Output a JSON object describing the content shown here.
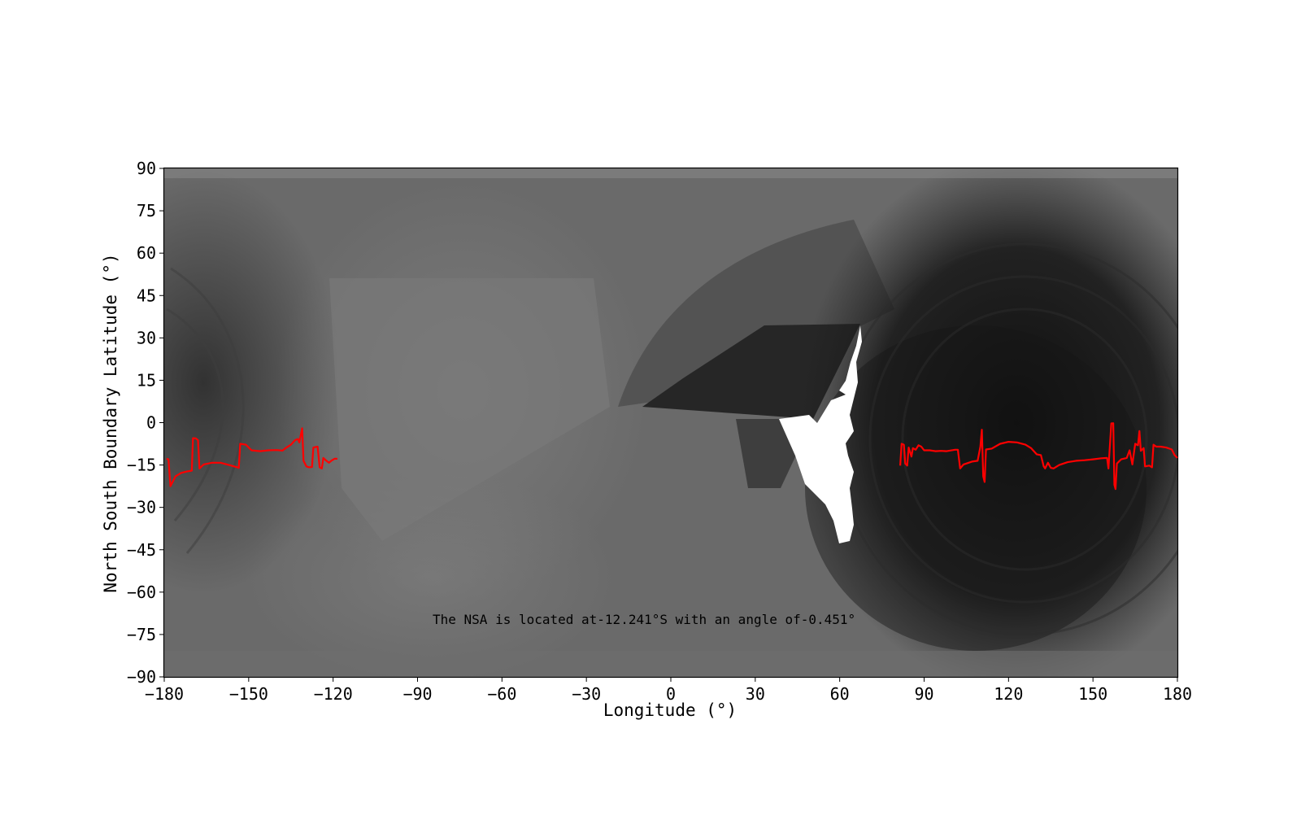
{
  "chart_data": {
    "type": "line",
    "title": "",
    "xlabel": "Longitude (°)",
    "ylabel": "North South Boundary Latitude (°)",
    "xlim": [
      -180,
      180
    ],
    "ylim": [
      -90,
      90
    ],
    "xticks": [
      -180,
      -150,
      -120,
      -90,
      -60,
      -30,
      0,
      30,
      60,
      90,
      120,
      150,
      180
    ],
    "yticks": [
      -90,
      -75,
      -60,
      -45,
      -30,
      -15,
      0,
      15,
      30,
      45,
      60,
      75,
      90
    ],
    "xtick_labels": [
      "−180",
      "−150",
      "−120",
      "−90",
      "−60",
      "−30",
      "0",
      "30",
      "60",
      "90",
      "120",
      "150",
      "180"
    ],
    "ytick_labels": [
      "−90",
      "−75",
      "−60",
      "−45",
      "−30",
      "−15",
      "0",
      "15",
      "30",
      "45",
      "60",
      "75",
      "90"
    ],
    "background": "grayscale synoptic map",
    "line_color": "#ff0000",
    "grid": false,
    "annotation": "The NSA is located at-12.241°S with an angle of-0.451°",
    "series": [
      {
        "segments": [
          [
            [
              -179.2,
              -12.8
            ],
            [
              -178.5,
              -13.0
            ],
            [
              -177.8,
              -22.5
            ],
            [
              -176,
              -19
            ],
            [
              -174,
              -17.8
            ],
            [
              -172,
              -17.3
            ],
            [
              -170.2,
              -17.0
            ],
            [
              -169.8,
              -5.5
            ],
            [
              -168.8,
              -5.6
            ],
            [
              -168,
              -6.2
            ],
            [
              -167.5,
              -16.2
            ],
            [
              -166,
              -14.8
            ],
            [
              -163,
              -14.2
            ],
            [
              -160,
              -14.2
            ],
            [
              -157,
              -15.0
            ],
            [
              -154,
              -15.8
            ],
            [
              -153.5,
              -16.0
            ],
            [
              -153,
              -7.5
            ],
            [
              -151,
              -7.8
            ],
            [
              -149,
              -9.8
            ],
            [
              -146,
              -10.1
            ],
            [
              -143,
              -9.8
            ],
            [
              -140,
              -9.7
            ],
            [
              -138,
              -9.9
            ],
            [
              -137,
              -9.1
            ],
            [
              -135,
              -7.8
            ],
            [
              -133.5,
              -6.2
            ],
            [
              -132.5,
              -5.8
            ],
            [
              -132,
              -7.0
            ],
            [
              -131,
              -2.0
            ],
            [
              -130.5,
              -13.5
            ],
            [
              -129.5,
              -15.5
            ],
            [
              -128.5,
              -15.8
            ],
            [
              -127.5,
              -15.7
            ],
            [
              -127,
              -8.8
            ],
            [
              -125.5,
              -8.5
            ],
            [
              -124.8,
              -15.8
            ],
            [
              -124,
              -16.2
            ],
            [
              -123.5,
              -12.5
            ],
            [
              -122.5,
              -13.4
            ],
            [
              -121.5,
              -14.2
            ],
            [
              -120.5,
              -13.4
            ],
            [
              -119.5,
              -12.8
            ],
            [
              -118.5,
              -12.8
            ]
          ],
          [
            [
              81.5,
              -15.2
            ],
            [
              82,
              -7.5
            ],
            [
              82.8,
              -7.8
            ],
            [
              83.3,
              -14.5
            ],
            [
              84,
              -15.2
            ],
            [
              84.5,
              -8.8
            ],
            [
              85.5,
              -12.0
            ],
            [
              86,
              -9.0
            ],
            [
              87,
              -9.6
            ],
            [
              88,
              -8.0
            ],
            [
              89,
              -8.5
            ],
            [
              90,
              -9.8
            ],
            [
              92,
              -9.8
            ],
            [
              94,
              -10.1
            ],
            [
              96,
              -10.0
            ],
            [
              98,
              -10.1
            ],
            [
              101,
              -9.6
            ],
            [
              102,
              -9.6
            ],
            [
              102.8,
              -16.2
            ],
            [
              104,
              -14.8
            ],
            [
              107,
              -13.8
            ],
            [
              109,
              -13.5
            ],
            [
              110,
              -8.5
            ],
            [
              110.5,
              -2.5
            ],
            [
              111,
              -19.0
            ],
            [
              111.5,
              -21.0
            ],
            [
              112,
              -9.5
            ],
            [
              114,
              -9.2
            ],
            [
              117,
              -7.5
            ],
            [
              120,
              -6.8
            ],
            [
              123,
              -7.0
            ],
            [
              126,
              -7.8
            ],
            [
              128,
              -9.0
            ],
            [
              130,
              -11.2
            ],
            [
              131.5,
              -11.5
            ],
            [
              132.5,
              -15.5
            ],
            [
              133,
              -16.2
            ],
            [
              134,
              -14.2
            ],
            [
              135,
              -16.0
            ],
            [
              136,
              -16.2
            ],
            [
              138,
              -15.0
            ],
            [
              141,
              -14.0
            ],
            [
              144,
              -13.5
            ],
            [
              147,
              -13.3
            ],
            [
              150,
              -13.0
            ],
            [
              153,
              -12.6
            ],
            [
              155,
              -12.5
            ],
            [
              155.5,
              -16.2
            ],
            [
              156.5,
              -0.3
            ],
            [
              157.2,
              -0.2
            ],
            [
              157.6,
              -22.0
            ],
            [
              158,
              -23.5
            ],
            [
              158.5,
              -14.5
            ],
            [
              160,
              -13.0
            ],
            [
              162,
              -12.5
            ],
            [
              163,
              -9.8
            ],
            [
              164,
              -14.8
            ],
            [
              165,
              -7.5
            ],
            [
              166,
              -8.0
            ],
            [
              166.5,
              -3.0
            ],
            [
              167,
              -10.0
            ],
            [
              168,
              -9.0
            ],
            [
              168.5,
              -15.5
            ],
            [
              170,
              -15.2
            ],
            [
              171,
              -15.8
            ],
            [
              171.5,
              -7.8
            ],
            [
              172.5,
              -8.5
            ],
            [
              174,
              -8.5
            ],
            [
              176,
              -8.8
            ],
            [
              178,
              -9.5
            ],
            [
              179,
              -11.5
            ],
            [
              180,
              -12.5
            ]
          ]
        ]
      }
    ]
  }
}
